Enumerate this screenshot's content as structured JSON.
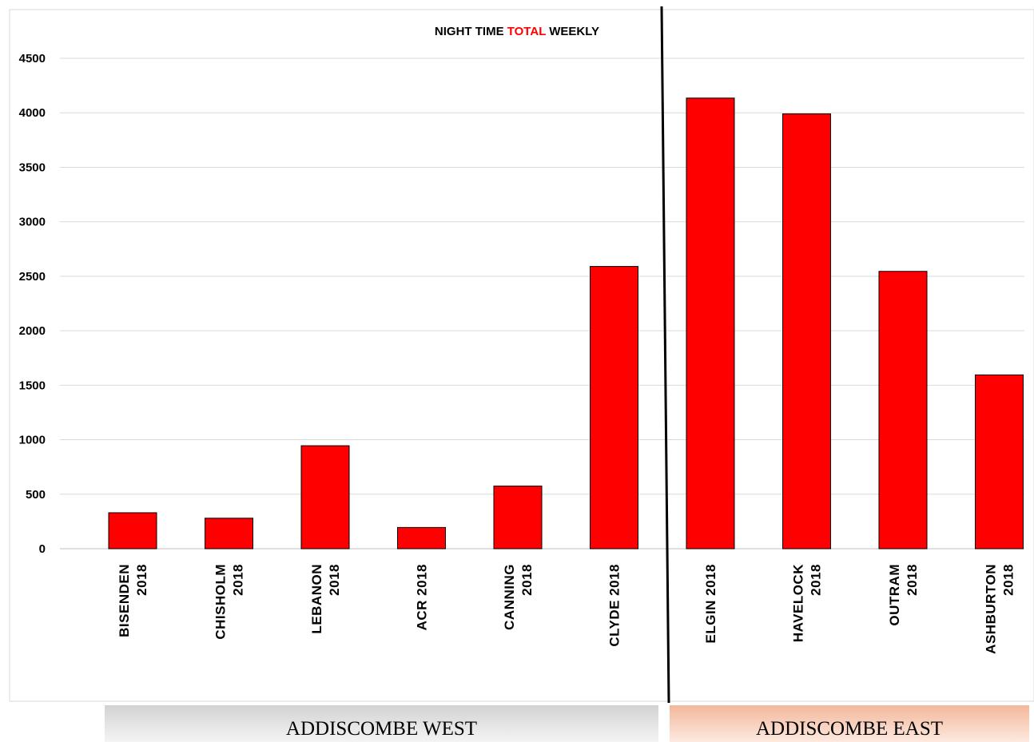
{
  "chart_data": {
    "type": "bar",
    "title_parts": [
      {
        "text": "NIGHT TIME ",
        "color": "#000000"
      },
      {
        "text": "TOTAL",
        "color": "#ff0000"
      },
      {
        "text": " WEEKLY",
        "color": "#000000"
      }
    ],
    "categories": [
      [
        "BISENDEN",
        "2018"
      ],
      [
        "CHISHOLM",
        "2018"
      ],
      [
        "LEBANON",
        "2018"
      ],
      [
        "ACR 2018"
      ],
      [
        "CANNING",
        "2018"
      ],
      [
        "CLYDE 2018"
      ],
      [
        "ELGIN 2018"
      ],
      [
        "HAVELOCK",
        "2018"
      ],
      [
        "OUTRAM",
        "2018"
      ],
      [
        "ASHBURTON",
        "2018"
      ]
    ],
    "values": [
      330,
      280,
      945,
      195,
      575,
      2590,
      4135,
      3990,
      2545,
      1595
    ],
    "y_ticks": [
      0,
      500,
      1000,
      1500,
      2000,
      2500,
      3000,
      3500,
      4000,
      4500
    ],
    "ylim": [
      0,
      4500
    ],
    "grid": true,
    "bar_color": "#ff0000",
    "bar_edge_color": "#000000",
    "groups": [
      {
        "label": "ADDISCOMBE WEST",
        "first_index": 0,
        "last_index": 5
      },
      {
        "label": "ADDISCOMBE EAST",
        "first_index": 6,
        "last_index": 9
      }
    ]
  }
}
